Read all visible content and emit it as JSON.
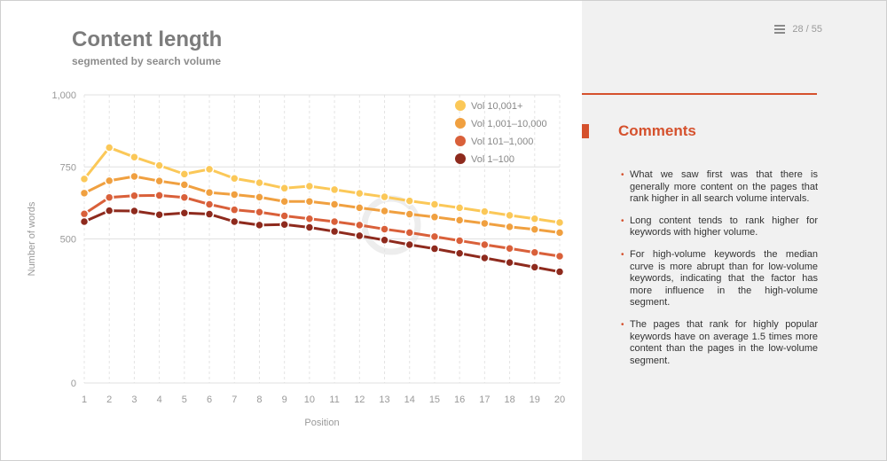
{
  "page": {
    "title": "Content length",
    "subtitle": "segmented by search volume",
    "pager_text": "28 / 55"
  },
  "chart_data": {
    "type": "line",
    "xlabel": "Position",
    "ylabel": "Number of words",
    "ylim": [
      0,
      1000
    ],
    "yticks": [
      0,
      500,
      750,
      1000
    ],
    "ytick_labels": [
      "0",
      "500",
      "750",
      "1,000"
    ],
    "x": [
      1,
      2,
      3,
      4,
      5,
      6,
      7,
      8,
      9,
      10,
      11,
      12,
      13,
      14,
      15,
      16,
      17,
      18,
      19,
      20
    ],
    "grid": true,
    "legend_position": "top-right",
    "series": [
      {
        "name": "Vol 10,001+",
        "color": "#fbc858",
        "values": [
          708,
          817,
          784,
          755,
          725,
          742,
          710,
          695,
          676,
          683,
          671,
          658,
          646,
          632,
          620,
          608,
          595,
          582,
          570,
          557
        ]
      },
      {
        "name": "Vol 1,001–10,000",
        "color": "#f0a040",
        "values": [
          659,
          702,
          717,
          701,
          688,
          661,
          654,
          645,
          630,
          630,
          620,
          608,
          597,
          586,
          576,
          565,
          554,
          542,
          533,
          522
        ]
      },
      {
        "name": "Vol 101–1,000",
        "color": "#d9603a",
        "values": [
          587,
          644,
          650,
          651,
          644,
          620,
          601,
          593,
          580,
          570,
          560,
          548,
          534,
          522,
          508,
          494,
          480,
          467,
          453,
          440
        ]
      },
      {
        "name": "Vol 1–100",
        "color": "#8e2a1d",
        "values": [
          560,
          598,
          597,
          584,
          590,
          586,
          560,
          548,
          550,
          540,
          526,
          511,
          496,
          480,
          466,
          450,
          434,
          418,
          402,
          386
        ]
      }
    ]
  },
  "comments": {
    "title": "Comments",
    "items": [
      "What we saw first was that there is generally more content on the pages that rank higher in all search volume intervals.",
      "Long content tends to rank higher for keywords with higher volume.",
      "For high-volume keywords the median curve is more abrupt than for low-volume keywords, indicating that the factor has more influence in the high-volume segment.",
      "The pages that rank for highly popular keywords have on average 1.5 times more content than the pages in the low-volume segment."
    ]
  }
}
